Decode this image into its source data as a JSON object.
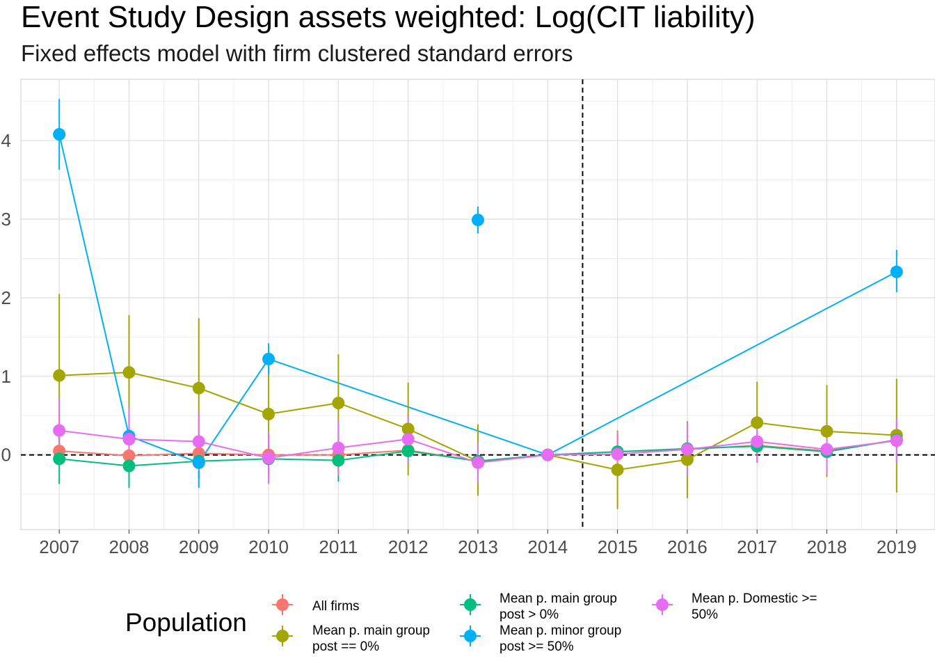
{
  "chart_data": {
    "type": "line",
    "title": "Event Study Design assets weighted: Log(CIT liability)",
    "subtitle": "Fixed effects model with firm clustered standard errors",
    "xlabel": "",
    "ylabel": "",
    "x": [
      2007,
      2008,
      2009,
      2010,
      2011,
      2012,
      2013,
      2014,
      2015,
      2016,
      2017,
      2018,
      2019
    ],
    "xlim": [
      2006.45,
      2019.55
    ],
    "ylim": [
      -0.95,
      4.78
    ],
    "yticks": [
      0,
      1,
      2,
      3,
      4
    ],
    "grid": true,
    "reference_lines": {
      "y": 0,
      "x": 2014.5
    },
    "legend": {
      "title": "Population",
      "position": "bottom"
    },
    "series": [
      {
        "name": "All firms",
        "color": "#F8766D",
        "x": [
          2007,
          2008,
          2009,
          2010,
          2011,
          2012,
          2013,
          2014,
          2015,
          2016,
          2017,
          2018,
          2019
        ],
        "values": [
          0.05,
          -0.01,
          0.02,
          0.0,
          0.0,
          0.06,
          -0.08,
          0.0,
          0.04,
          0.07,
          0.12,
          0.05,
          0.19
        ],
        "lower": [
          0.0,
          -0.06,
          -0.02,
          -0.04,
          -0.04,
          0.01,
          -0.13,
          0.0,
          0.0,
          0.03,
          0.07,
          0.0,
          0.13
        ],
        "upper": [
          0.1,
          0.04,
          0.06,
          0.04,
          0.04,
          0.11,
          -0.03,
          0.0,
          0.08,
          0.11,
          0.17,
          0.1,
          0.25
        ]
      },
      {
        "name": "Mean p. main group post == 0%",
        "color": "#A3A500",
        "x": [
          2007,
          2008,
          2009,
          2010,
          2011,
          2012,
          2013,
          2014,
          2015,
          2016,
          2017,
          2018,
          2019
        ],
        "values": [
          1.01,
          1.05,
          0.85,
          0.52,
          0.66,
          0.33,
          -0.08,
          0.0,
          -0.19,
          -0.06,
          0.41,
          0.3,
          0.25
        ],
        "lower": [
          -0.02,
          0.32,
          -0.04,
          -0.08,
          0.04,
          -0.26,
          -0.52,
          0.0,
          -0.69,
          -0.55,
          -0.1,
          -0.28,
          -0.48
        ],
        "upper": [
          2.05,
          1.78,
          1.74,
          1.12,
          1.28,
          0.92,
          0.39,
          0.0,
          0.31,
          0.43,
          0.93,
          0.89,
          0.97
        ]
      },
      {
        "name": "Mean p. main group post > 0%",
        "color": "#00BF7D",
        "x": [
          2007,
          2008,
          2009,
          2010,
          2011,
          2012,
          2013,
          2014,
          2015,
          2016,
          2017,
          2018,
          2019
        ],
        "values": [
          -0.05,
          -0.14,
          -0.08,
          -0.05,
          -0.07,
          0.05,
          -0.08,
          0.0,
          0.04,
          0.08,
          0.11,
          0.04,
          0.19
        ],
        "lower": [
          -0.37,
          -0.42,
          -0.3,
          -0.22,
          -0.34,
          -0.05,
          -0.18,
          0.0,
          -0.05,
          0.0,
          0.0,
          -0.05,
          0.09
        ],
        "upper": [
          0.27,
          0.14,
          0.14,
          0.12,
          0.2,
          0.15,
          0.02,
          0.0,
          0.13,
          0.16,
          0.22,
          0.13,
          0.29
        ]
      },
      {
        "name": "Mean p. minor group post >= 50%",
        "color": "#00B0F6",
        "x": [
          2007,
          2008,
          2009,
          2010,
          2014,
          2019
        ],
        "values": [
          4.08,
          0.24,
          -0.1,
          1.22,
          0.0,
          2.33
        ],
        "lower": [
          3.63,
          -0.08,
          -0.42,
          1.02,
          0.0,
          2.07
        ],
        "upper": [
          4.53,
          0.56,
          0.22,
          1.42,
          0.0,
          2.61
        ],
        "extra_points": [
          {
            "x": 2013,
            "value": 2.99,
            "lower": 2.82,
            "upper": 3.16
          }
        ]
      },
      {
        "name": "Mean p. Domestic >= 50%",
        "color": "#E76BF3",
        "x": [
          2007,
          2008,
          2009,
          2010,
          2011,
          2012,
          2013,
          2014,
          2015,
          2016,
          2017,
          2018,
          2019
        ],
        "values": [
          0.31,
          0.2,
          0.17,
          -0.04,
          0.09,
          0.2,
          -0.1,
          0.0,
          0.01,
          0.07,
          0.17,
          0.07,
          0.18
        ],
        "lower": [
          -0.1,
          -0.2,
          -0.2,
          -0.37,
          -0.26,
          -0.1,
          -0.35,
          0.0,
          -0.27,
          -0.27,
          -0.1,
          -0.25,
          -0.1
        ],
        "upper": [
          0.72,
          0.6,
          0.54,
          0.29,
          0.44,
          0.5,
          0.15,
          0.0,
          0.29,
          0.41,
          0.44,
          0.39,
          0.46
        ]
      }
    ]
  }
}
